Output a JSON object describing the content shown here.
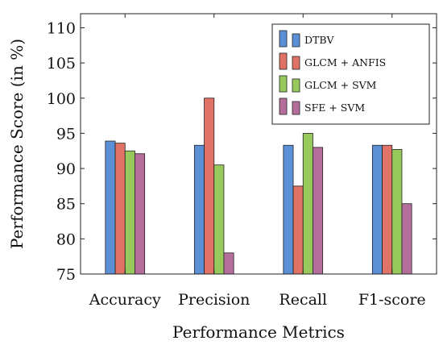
{
  "chart_data": {
    "type": "bar",
    "categories": [
      "Accuracy",
      "Precision",
      "Recall",
      "F1-score"
    ],
    "series": [
      {
        "name": "DTBV",
        "color": "#5b8fd6",
        "values": [
          93.9,
          93.3,
          93.3,
          93.3
        ]
      },
      {
        "name": "GLCM + ANFIS",
        "color": "#e07266",
        "values": [
          93.6,
          100.0,
          87.5,
          93.3
        ]
      },
      {
        "name": "GLCM + SVM",
        "color": "#98c95c",
        "values": [
          92.5,
          90.5,
          95.0,
          92.7
        ]
      },
      {
        "name": "SFE + SVM",
        "color": "#b46e9c",
        "values": [
          92.1,
          78.0,
          93.0,
          85.0
        ]
      }
    ],
    "xlabel": "Performance Metrics",
    "ylabel": "Performance Score (in %)",
    "ylim": [
      75,
      112
    ],
    "yticks": [
      75,
      80,
      85,
      90,
      95,
      100,
      105,
      110
    ],
    "grid": false,
    "legend_position": "top-right"
  }
}
